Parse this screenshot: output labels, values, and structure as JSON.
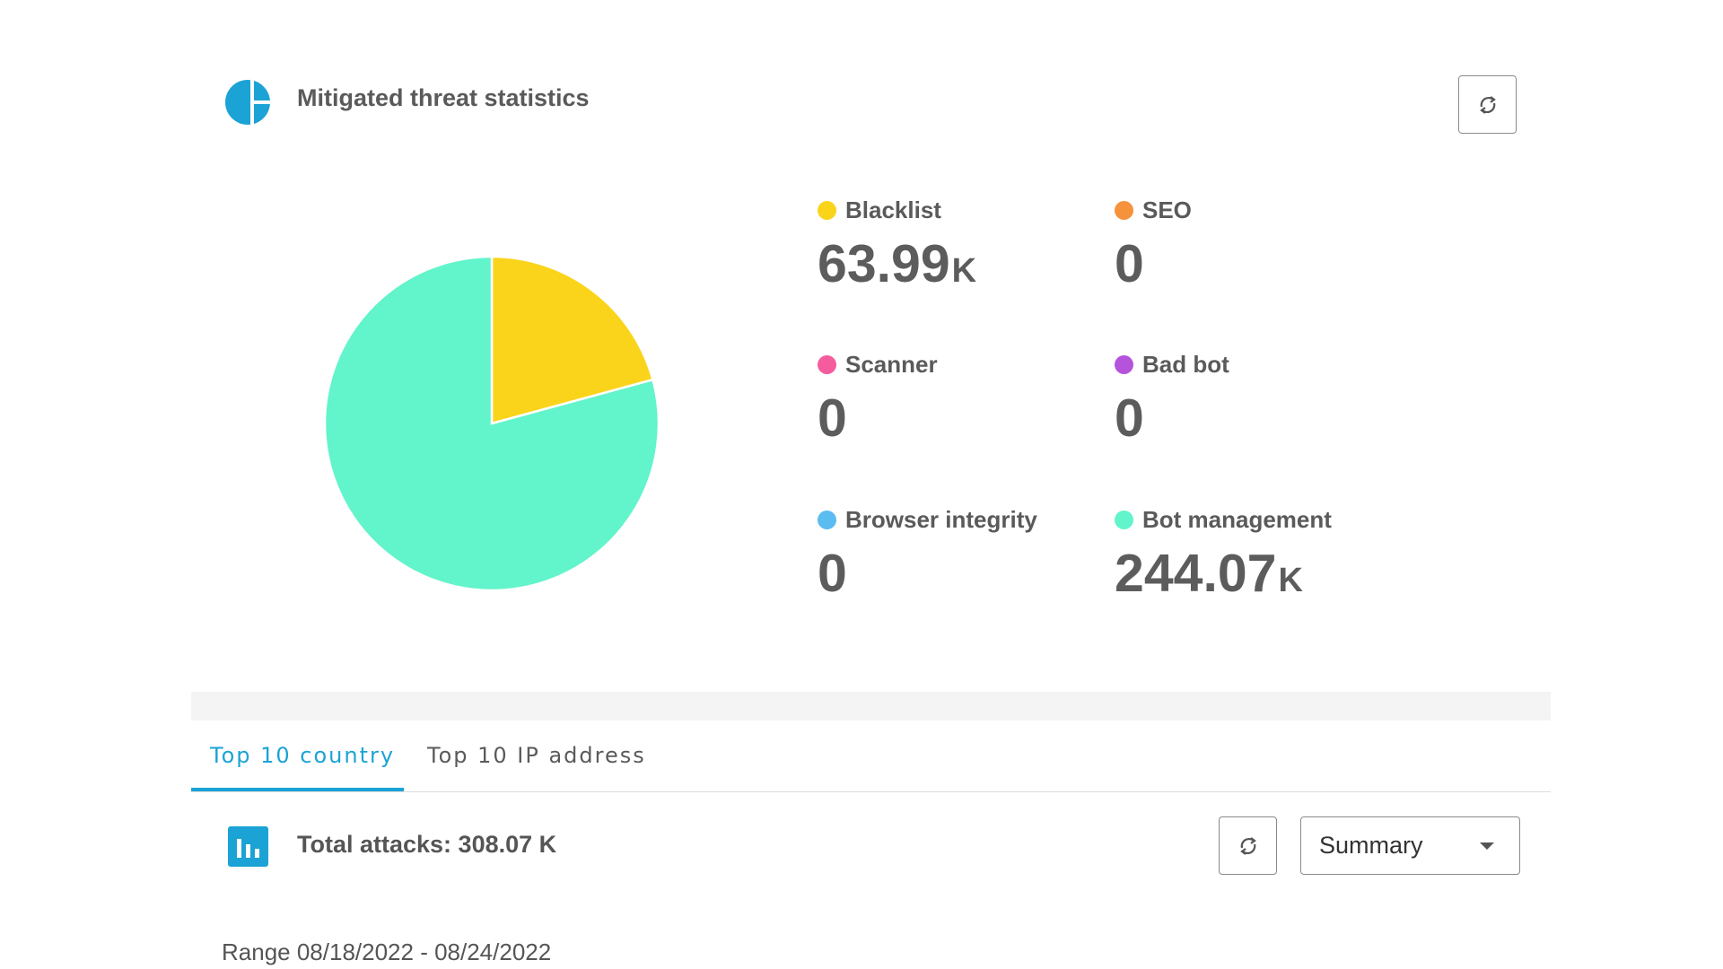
{
  "header": {
    "title": "Mitigated threat statistics",
    "icon": "pie-chart-icon",
    "refresh_icon": "refresh-icon"
  },
  "stats": {
    "blacklist": {
      "label": "Blacklist",
      "value": "63.99",
      "unit": "K",
      "color": "#fad41a"
    },
    "seo": {
      "label": "SEO",
      "value": "0",
      "unit": "",
      "color": "#f6913c"
    },
    "scanner": {
      "label": "Scanner",
      "value": "0",
      "unit": "",
      "color": "#f55c9d"
    },
    "bad_bot": {
      "label": "Bad bot",
      "value": "0",
      "unit": "",
      "color": "#b653dc"
    },
    "browser_integrity": {
      "label": "Browser integrity",
      "value": "0",
      "unit": "",
      "color": "#5bbcf1"
    },
    "bot_management": {
      "label": "Bot management",
      "value": "244.07",
      "unit": "K",
      "color": "#62f4cb"
    }
  },
  "chart_data": {
    "type": "pie",
    "slices": [
      {
        "label": "Blacklist",
        "value": 63.99,
        "color": "#fad41a"
      },
      {
        "label": "Bot management",
        "value": 244.07,
        "color": "#62f4cb"
      }
    ]
  },
  "tabs": [
    {
      "label": "Top 10 country",
      "active": true
    },
    {
      "label": "Top 10 IP address",
      "active": false
    }
  ],
  "attacks": {
    "total_label": "Total attacks: 308.07 K",
    "icon": "bar-chart-icon",
    "select_value": "Summary",
    "range": "Range 08/18/2022 - 08/24/2022"
  },
  "colors": {
    "accent": "#1ba3d6"
  }
}
